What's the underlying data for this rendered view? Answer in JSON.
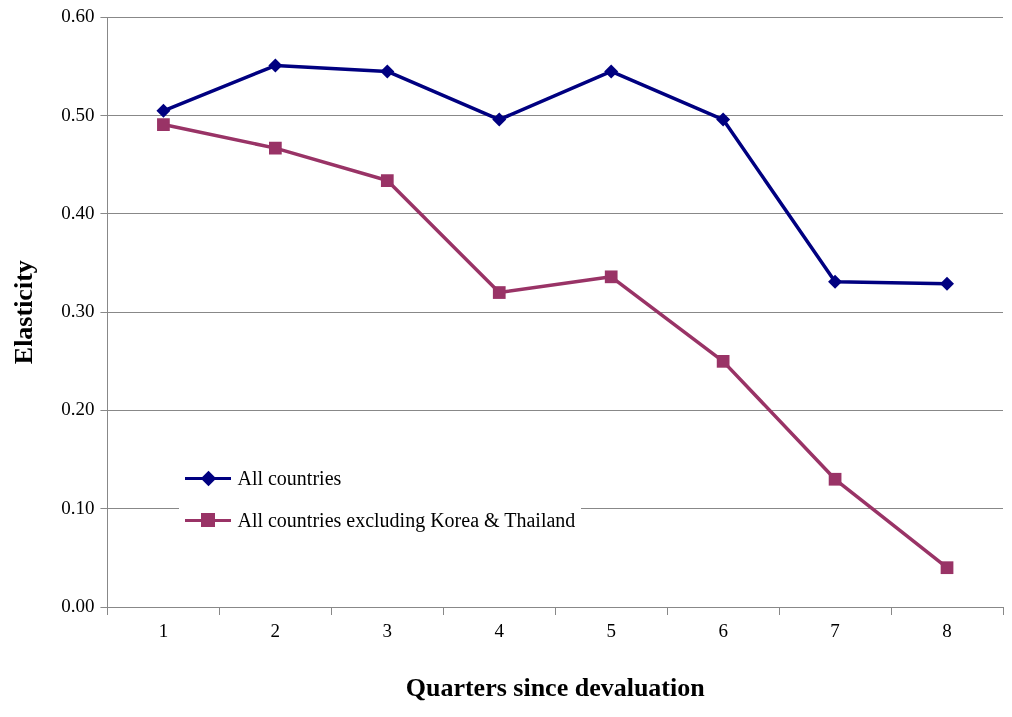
{
  "chart_data": {
    "type": "line",
    "xlabel": "Quarters since devaluation",
    "ylabel": "Elasticity",
    "categories": [
      "1",
      "2",
      "3",
      "4",
      "5",
      "6",
      "7",
      "8"
    ],
    "series": [
      {
        "name": "All countries",
        "color": "#000080",
        "marker": "diamond",
        "values": [
          0.505,
          0.551,
          0.545,
          0.496,
          0.545,
          0.496,
          0.331,
          0.329
        ]
      },
      {
        "name": "All countries excluding Korea & Thailand",
        "color": "#993366",
        "marker": "square",
        "values": [
          0.491,
          0.467,
          0.434,
          0.32,
          0.336,
          0.25,
          0.13,
          0.04
        ]
      }
    ],
    "ylim": [
      0,
      0.6
    ],
    "yticks": [
      {
        "value": 0,
        "label": "0.00"
      },
      {
        "value": 0.1,
        "label": "0.10"
      },
      {
        "value": 0.2,
        "label": "0.20"
      },
      {
        "value": 0.3,
        "label": "0.30"
      },
      {
        "value": 0.4,
        "label": "0.40"
      },
      {
        "value": 0.5,
        "label": "0.50"
      },
      {
        "value": 0.6,
        "label": "0.60"
      }
    ],
    "grid": "y",
    "legend": "bottom left",
    "line_style": "solid"
  }
}
